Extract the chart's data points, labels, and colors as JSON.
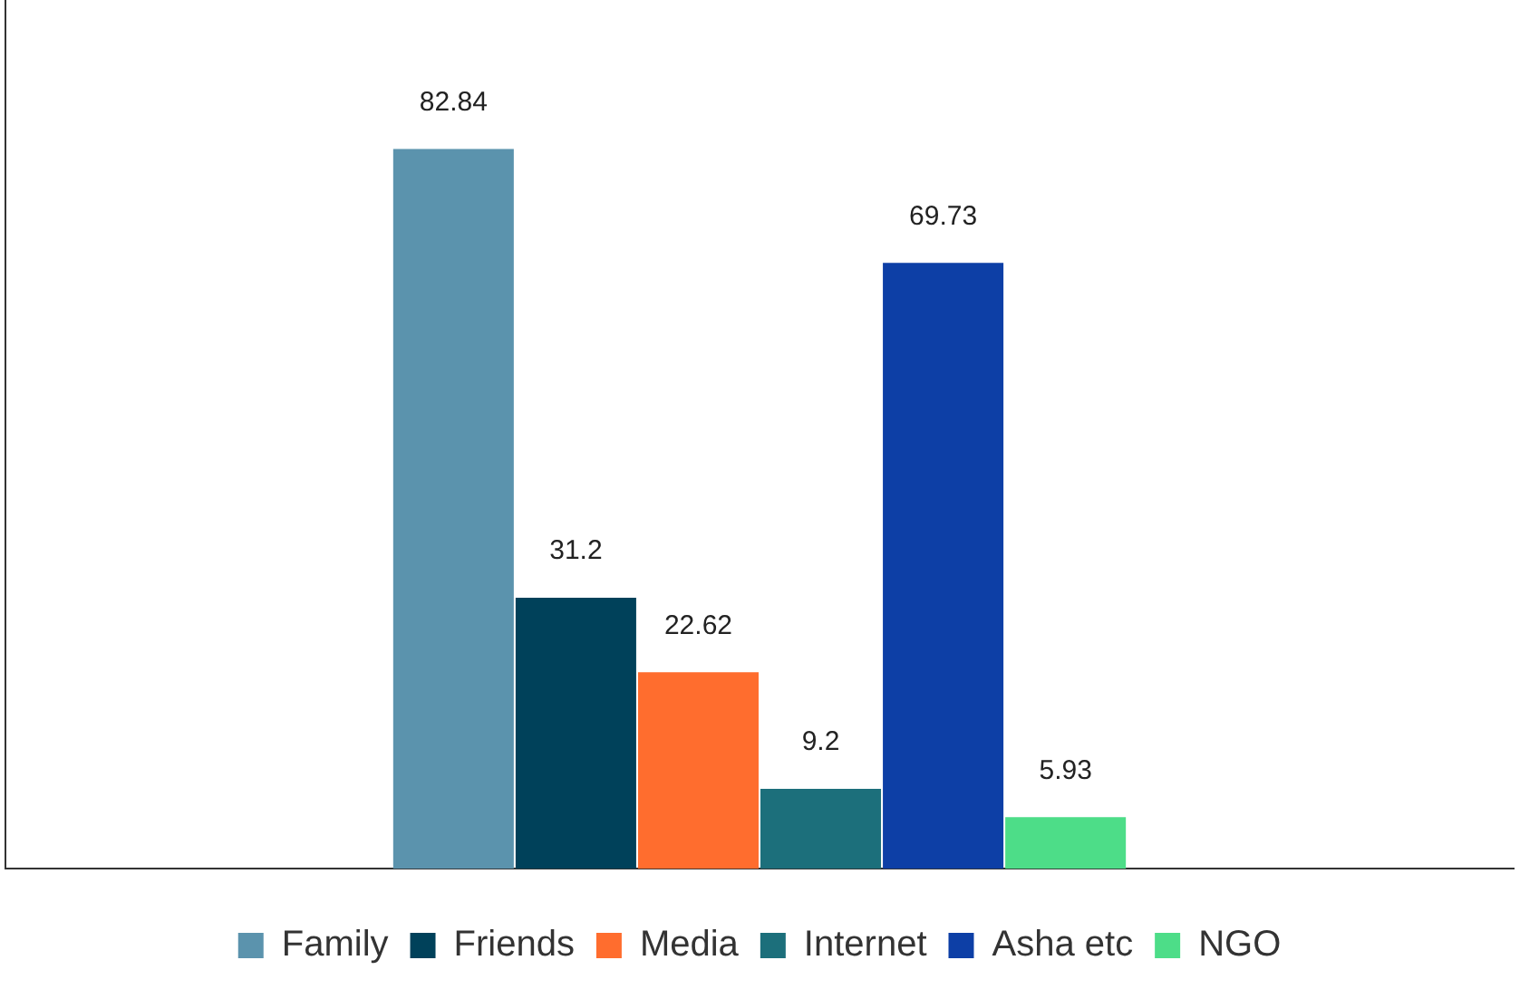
{
  "chart_data": {
    "type": "bar",
    "categories": [
      null
    ],
    "ylim": [
      0,
      100
    ],
    "grid": false,
    "legend": "bottom",
    "data_labels": true,
    "series": [
      {
        "name": "Family",
        "color": "#5b93ad",
        "values": [
          82.84
        ]
      },
      {
        "name": "Friends",
        "color": "#00415a",
        "values": [
          31.2
        ]
      },
      {
        "name": "Media",
        "color": "#ff6d2e",
        "values": [
          22.62
        ]
      },
      {
        "name": "Internet",
        "color": "#1c6f7b",
        "values": [
          9.2
        ]
      },
      {
        "name": "Asha etc",
        "color": "#0d3fa6",
        "values": [
          69.73
        ]
      },
      {
        "name": "NGO",
        "color": "#4ddd88",
        "values": [
          5.93
        ]
      }
    ]
  }
}
